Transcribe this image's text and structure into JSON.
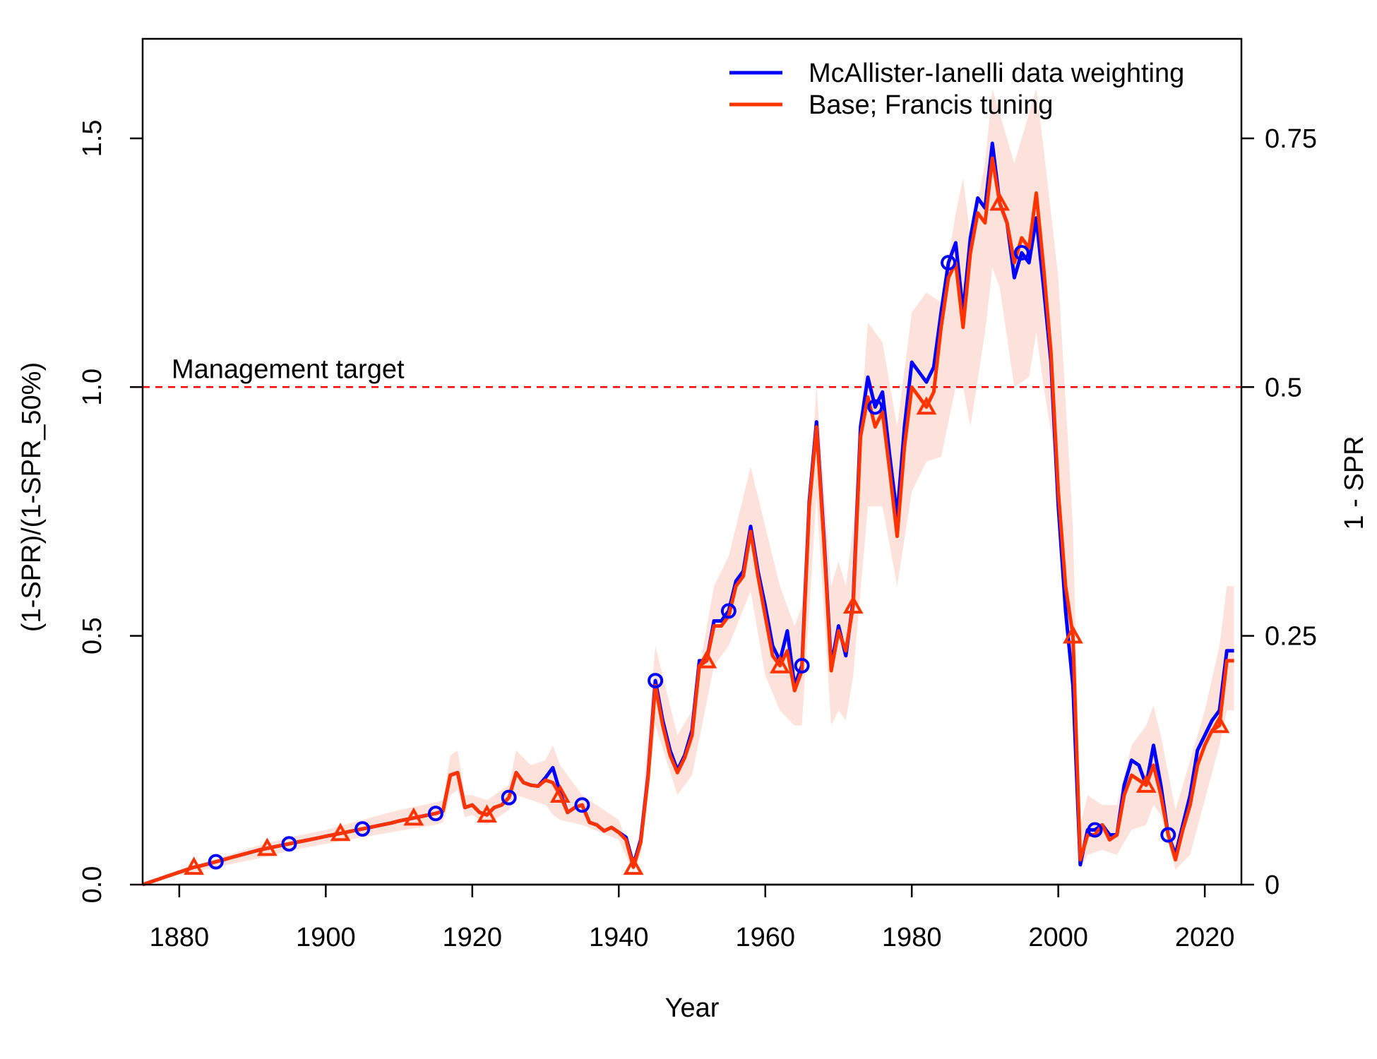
{
  "chart_data": {
    "type": "line",
    "title": "",
    "xlabel": "Year",
    "ylabel": "(1-SPR)/(1-SPR_50%)",
    "ylabel_right": "1 - SPR",
    "xlim": [
      1875,
      2025
    ],
    "ylim": [
      0,
      1.7
    ],
    "x_ticks": [
      1880,
      1900,
      1920,
      1940,
      1960,
      1980,
      2000,
      2020
    ],
    "y_ticks": [
      {
        "value": 0,
        "label": "0.0"
      },
      {
        "value": 0.5,
        "label": "0.5"
      },
      {
        "value": 1.0,
        "label": "1.0"
      },
      {
        "value": 1.5,
        "label": "1.5"
      }
    ],
    "y_right_ticks": [
      {
        "value": 0,
        "label": "0"
      },
      {
        "value": 0.5,
        "label": "0.25"
      },
      {
        "value": 1.0,
        "label": "0.5"
      },
      {
        "value": 1.5,
        "label": "0.75"
      }
    ],
    "reference_line": {
      "value": 1.0,
      "label": "Management target",
      "color": "#ff0000",
      "style": "dashed"
    },
    "legend": {
      "placement": "top-right"
    },
    "series": [
      {
        "name": "McAllister-Ianelli data weighting",
        "color": "#0000ff",
        "marker": "circle",
        "marker_every": 10,
        "marker_offset": 0,
        "x": [
          1875,
          1876,
          1877,
          1878,
          1879,
          1880,
          1881,
          1882,
          1883,
          1884,
          1885,
          1886,
          1887,
          1888,
          1889,
          1890,
          1891,
          1892,
          1893,
          1894,
          1895,
          1896,
          1897,
          1898,
          1899,
          1900,
          1901,
          1902,
          1903,
          1904,
          1905,
          1906,
          1907,
          1908,
          1909,
          1910,
          1911,
          1912,
          1913,
          1914,
          1915,
          1916,
          1917,
          1918,
          1919,
          1920,
          1921,
          1922,
          1923,
          1924,
          1925,
          1926,
          1927,
          1928,
          1929,
          1930,
          1931,
          1932,
          1933,
          1934,
          1935,
          1936,
          1937,
          1938,
          1939,
          1940,
          1941,
          1942,
          1943,
          1944,
          1945,
          1946,
          1947,
          1948,
          1949,
          1950,
          1951,
          1952,
          1953,
          1954,
          1955,
          1956,
          1957,
          1958,
          1959,
          1960,
          1961,
          1962,
          1963,
          1964,
          1965,
          1966,
          1967,
          1968,
          1969,
          1970,
          1971,
          1972,
          1973,
          1974,
          1975,
          1976,
          1977,
          1978,
          1979,
          1980,
          1981,
          1982,
          1983,
          1984,
          1985,
          1986,
          1987,
          1988,
          1989,
          1990,
          1991,
          1992,
          1993,
          1994,
          1995,
          1996,
          1997,
          1998,
          1999,
          2000,
          2001,
          2002,
          2003,
          2004,
          2005,
          2006,
          2007,
          2008,
          2009,
          2010,
          2011,
          2012,
          2013,
          2014,
          2015,
          2016,
          2017,
          2018,
          2019,
          2020,
          2021,
          2022,
          2023,
          2024
        ],
        "values": [
          0,
          0.005,
          0.01,
          0.015,
          0.02,
          0.025,
          0.03,
          0.035,
          0.038,
          0.042,
          0.046,
          0.05,
          0.054,
          0.058,
          0.062,
          0.066,
          0.07,
          0.073,
          0.076,
          0.079,
          0.082,
          0.085,
          0.088,
          0.091,
          0.094,
          0.097,
          0.1,
          0.103,
          0.106,
          0.109,
          0.112,
          0.115,
          0.118,
          0.121,
          0.124,
          0.128,
          0.131,
          0.134,
          0.137,
          0.14,
          0.143,
          0.148,
          0.22,
          0.225,
          0.155,
          0.16,
          0.145,
          0.14,
          0.155,
          0.16,
          0.175,
          0.225,
          0.205,
          0.2,
          0.198,
          0.215,
          0.235,
          0.185,
          0.145,
          0.155,
          0.16,
          0.125,
          0.12,
          0.108,
          0.115,
          0.105,
          0.095,
          0.04,
          0.09,
          0.22,
          0.41,
          0.33,
          0.27,
          0.23,
          0.26,
          0.31,
          0.45,
          0.45,
          0.53,
          0.53,
          0.55,
          0.61,
          0.63,
          0.72,
          0.63,
          0.56,
          0.48,
          0.45,
          0.51,
          0.4,
          0.44,
          0.77,
          0.93,
          0.7,
          0.44,
          0.52,
          0.46,
          0.57,
          0.92,
          1.02,
          0.96,
          0.99,
          0.86,
          0.74,
          0.92,
          1.05,
          1.03,
          1.01,
          1.04,
          1.15,
          1.25,
          1.29,
          1.15,
          1.3,
          1.38,
          1.36,
          1.49,
          1.37,
          1.33,
          1.22,
          1.27,
          1.25,
          1.34,
          1.2,
          1.05,
          0.76,
          0.55,
          0.4,
          0.04,
          0.11,
          0.11,
          0.12,
          0.1,
          0.1,
          0.2,
          0.25,
          0.24,
          0.2,
          0.28,
          0.2,
          0.1,
          0.06,
          0.12,
          0.18,
          0.27,
          0.3,
          0.33,
          0.35,
          0.47,
          0.47
        ]
      },
      {
        "name": "Base; Francis tuning",
        "color": "#ff3300",
        "marker": "triangle",
        "marker_every": 10,
        "marker_offset": 7,
        "x": [
          1875,
          1876,
          1877,
          1878,
          1879,
          1880,
          1881,
          1882,
          1883,
          1884,
          1885,
          1886,
          1887,
          1888,
          1889,
          1890,
          1891,
          1892,
          1893,
          1894,
          1895,
          1896,
          1897,
          1898,
          1899,
          1900,
          1901,
          1902,
          1903,
          1904,
          1905,
          1906,
          1907,
          1908,
          1909,
          1910,
          1911,
          1912,
          1913,
          1914,
          1915,
          1916,
          1917,
          1918,
          1919,
          1920,
          1921,
          1922,
          1923,
          1924,
          1925,
          1926,
          1927,
          1928,
          1929,
          1930,
          1931,
          1932,
          1933,
          1934,
          1935,
          1936,
          1937,
          1938,
          1939,
          1940,
          1941,
          1942,
          1943,
          1944,
          1945,
          1946,
          1947,
          1948,
          1949,
          1950,
          1951,
          1952,
          1953,
          1954,
          1955,
          1956,
          1957,
          1958,
          1959,
          1960,
          1961,
          1962,
          1963,
          1964,
          1965,
          1966,
          1967,
          1968,
          1969,
          1970,
          1971,
          1972,
          1973,
          1974,
          1975,
          1976,
          1977,
          1978,
          1979,
          1980,
          1981,
          1982,
          1983,
          1984,
          1985,
          1986,
          1987,
          1988,
          1989,
          1990,
          1991,
          1992,
          1993,
          1994,
          1995,
          1996,
          1997,
          1998,
          1999,
          2000,
          2001,
          2002,
          2003,
          2004,
          2005,
          2006,
          2007,
          2008,
          2009,
          2010,
          2011,
          2012,
          2013,
          2014,
          2015,
          2016,
          2017,
          2018,
          2019,
          2020,
          2021,
          2022,
          2023,
          2024
        ],
        "values": [
          0,
          0.005,
          0.01,
          0.015,
          0.02,
          0.025,
          0.03,
          0.035,
          0.038,
          0.042,
          0.046,
          0.05,
          0.054,
          0.058,
          0.062,
          0.066,
          0.07,
          0.073,
          0.076,
          0.079,
          0.082,
          0.085,
          0.088,
          0.091,
          0.094,
          0.097,
          0.1,
          0.103,
          0.106,
          0.109,
          0.112,
          0.115,
          0.118,
          0.121,
          0.124,
          0.128,
          0.131,
          0.134,
          0.137,
          0.14,
          0.143,
          0.148,
          0.22,
          0.225,
          0.155,
          0.16,
          0.145,
          0.14,
          0.155,
          0.16,
          0.175,
          0.225,
          0.205,
          0.2,
          0.198,
          0.21,
          0.205,
          0.18,
          0.145,
          0.155,
          0.16,
          0.125,
          0.12,
          0.108,
          0.115,
          0.105,
          0.09,
          0.035,
          0.085,
          0.215,
          0.4,
          0.32,
          0.26,
          0.225,
          0.255,
          0.3,
          0.44,
          0.45,
          0.52,
          0.52,
          0.54,
          0.6,
          0.62,
          0.71,
          0.62,
          0.54,
          0.46,
          0.44,
          0.47,
          0.39,
          0.43,
          0.76,
          0.92,
          0.69,
          0.43,
          0.51,
          0.47,
          0.56,
          0.9,
          0.98,
          0.92,
          0.95,
          0.83,
          0.7,
          0.88,
          1.0,
          0.98,
          0.96,
          0.99,
          1.12,
          1.22,
          1.25,
          1.12,
          1.27,
          1.35,
          1.33,
          1.46,
          1.37,
          1.33,
          1.25,
          1.3,
          1.28,
          1.39,
          1.24,
          1.07,
          0.79,
          0.6,
          0.5,
          0.05,
          0.1,
          0.1,
          0.12,
          0.09,
          0.1,
          0.18,
          0.22,
          0.21,
          0.2,
          0.24,
          0.18,
          0.1,
          0.05,
          0.11,
          0.16,
          0.24,
          0.28,
          0.31,
          0.32,
          0.45,
          0.45
        ]
      }
    ],
    "uncertainty_band": {
      "color": "#fde2dc",
      "x": [
        1875,
        1880,
        1885,
        1890,
        1895,
        1900,
        1905,
        1910,
        1915,
        1916,
        1917,
        1918,
        1919,
        1920,
        1922,
        1925,
        1926,
        1928,
        1930,
        1931,
        1932,
        1935,
        1940,
        1942,
        1943,
        1945,
        1948,
        1950,
        1953,
        1955,
        1958,
        1960,
        1962,
        1964,
        1965,
        1967,
        1969,
        1970,
        1971,
        1972,
        1974,
        1976,
        1978,
        1980,
        1982,
        1984,
        1986,
        1987,
        1988,
        1990,
        1991,
        1992,
        1994,
        1996,
        1997,
        1998,
        2000,
        2002,
        2003,
        2004,
        2006,
        2008,
        2010,
        2012,
        2013,
        2014,
        2016,
        2018,
        2020,
        2022,
        2023,
        2024
      ],
      "upper": [
        0,
        0.03,
        0.052,
        0.075,
        0.095,
        0.11,
        0.13,
        0.15,
        0.165,
        0.17,
        0.26,
        0.27,
        0.18,
        0.18,
        0.17,
        0.2,
        0.27,
        0.24,
        0.25,
        0.28,
        0.24,
        0.18,
        0.13,
        0.05,
        0.12,
        0.48,
        0.3,
        0.35,
        0.6,
        0.66,
        0.84,
        0.72,
        0.6,
        0.52,
        0.56,
        1.0,
        0.6,
        0.65,
        0.6,
        0.72,
        1.13,
        1.09,
        0.92,
        1.15,
        1.19,
        1.17,
        1.35,
        1.42,
        1.3,
        1.45,
        1.6,
        1.55,
        1.45,
        1.55,
        1.6,
        1.48,
        1.22,
        0.72,
        0.12,
        0.18,
        0.16,
        0.16,
        0.28,
        0.32,
        0.36,
        0.3,
        0.15,
        0.25,
        0.35,
        0.48,
        0.6,
        0.6
      ],
      "lower": [
        0,
        0.02,
        0.035,
        0.05,
        0.068,
        0.082,
        0.095,
        0.108,
        0.12,
        0.125,
        0.18,
        0.19,
        0.135,
        0.14,
        0.12,
        0.15,
        0.18,
        0.17,
        0.16,
        0.14,
        0.13,
        0.12,
        0.09,
        0.025,
        0.06,
        0.32,
        0.18,
        0.22,
        0.44,
        0.48,
        0.59,
        0.42,
        0.35,
        0.32,
        0.32,
        0.78,
        0.32,
        0.35,
        0.33,
        0.42,
        0.76,
        0.76,
        0.6,
        0.79,
        0.85,
        0.86,
        1.0,
        1.0,
        0.92,
        1.11,
        1.24,
        1.2,
        1.0,
        1.02,
        1.11,
        1.0,
        0.82,
        0.34,
        0.03,
        0.06,
        0.07,
        0.06,
        0.11,
        0.12,
        0.16,
        0.14,
        0.03,
        0.06,
        0.17,
        0.28,
        0.35,
        0.35
      ]
    }
  }
}
